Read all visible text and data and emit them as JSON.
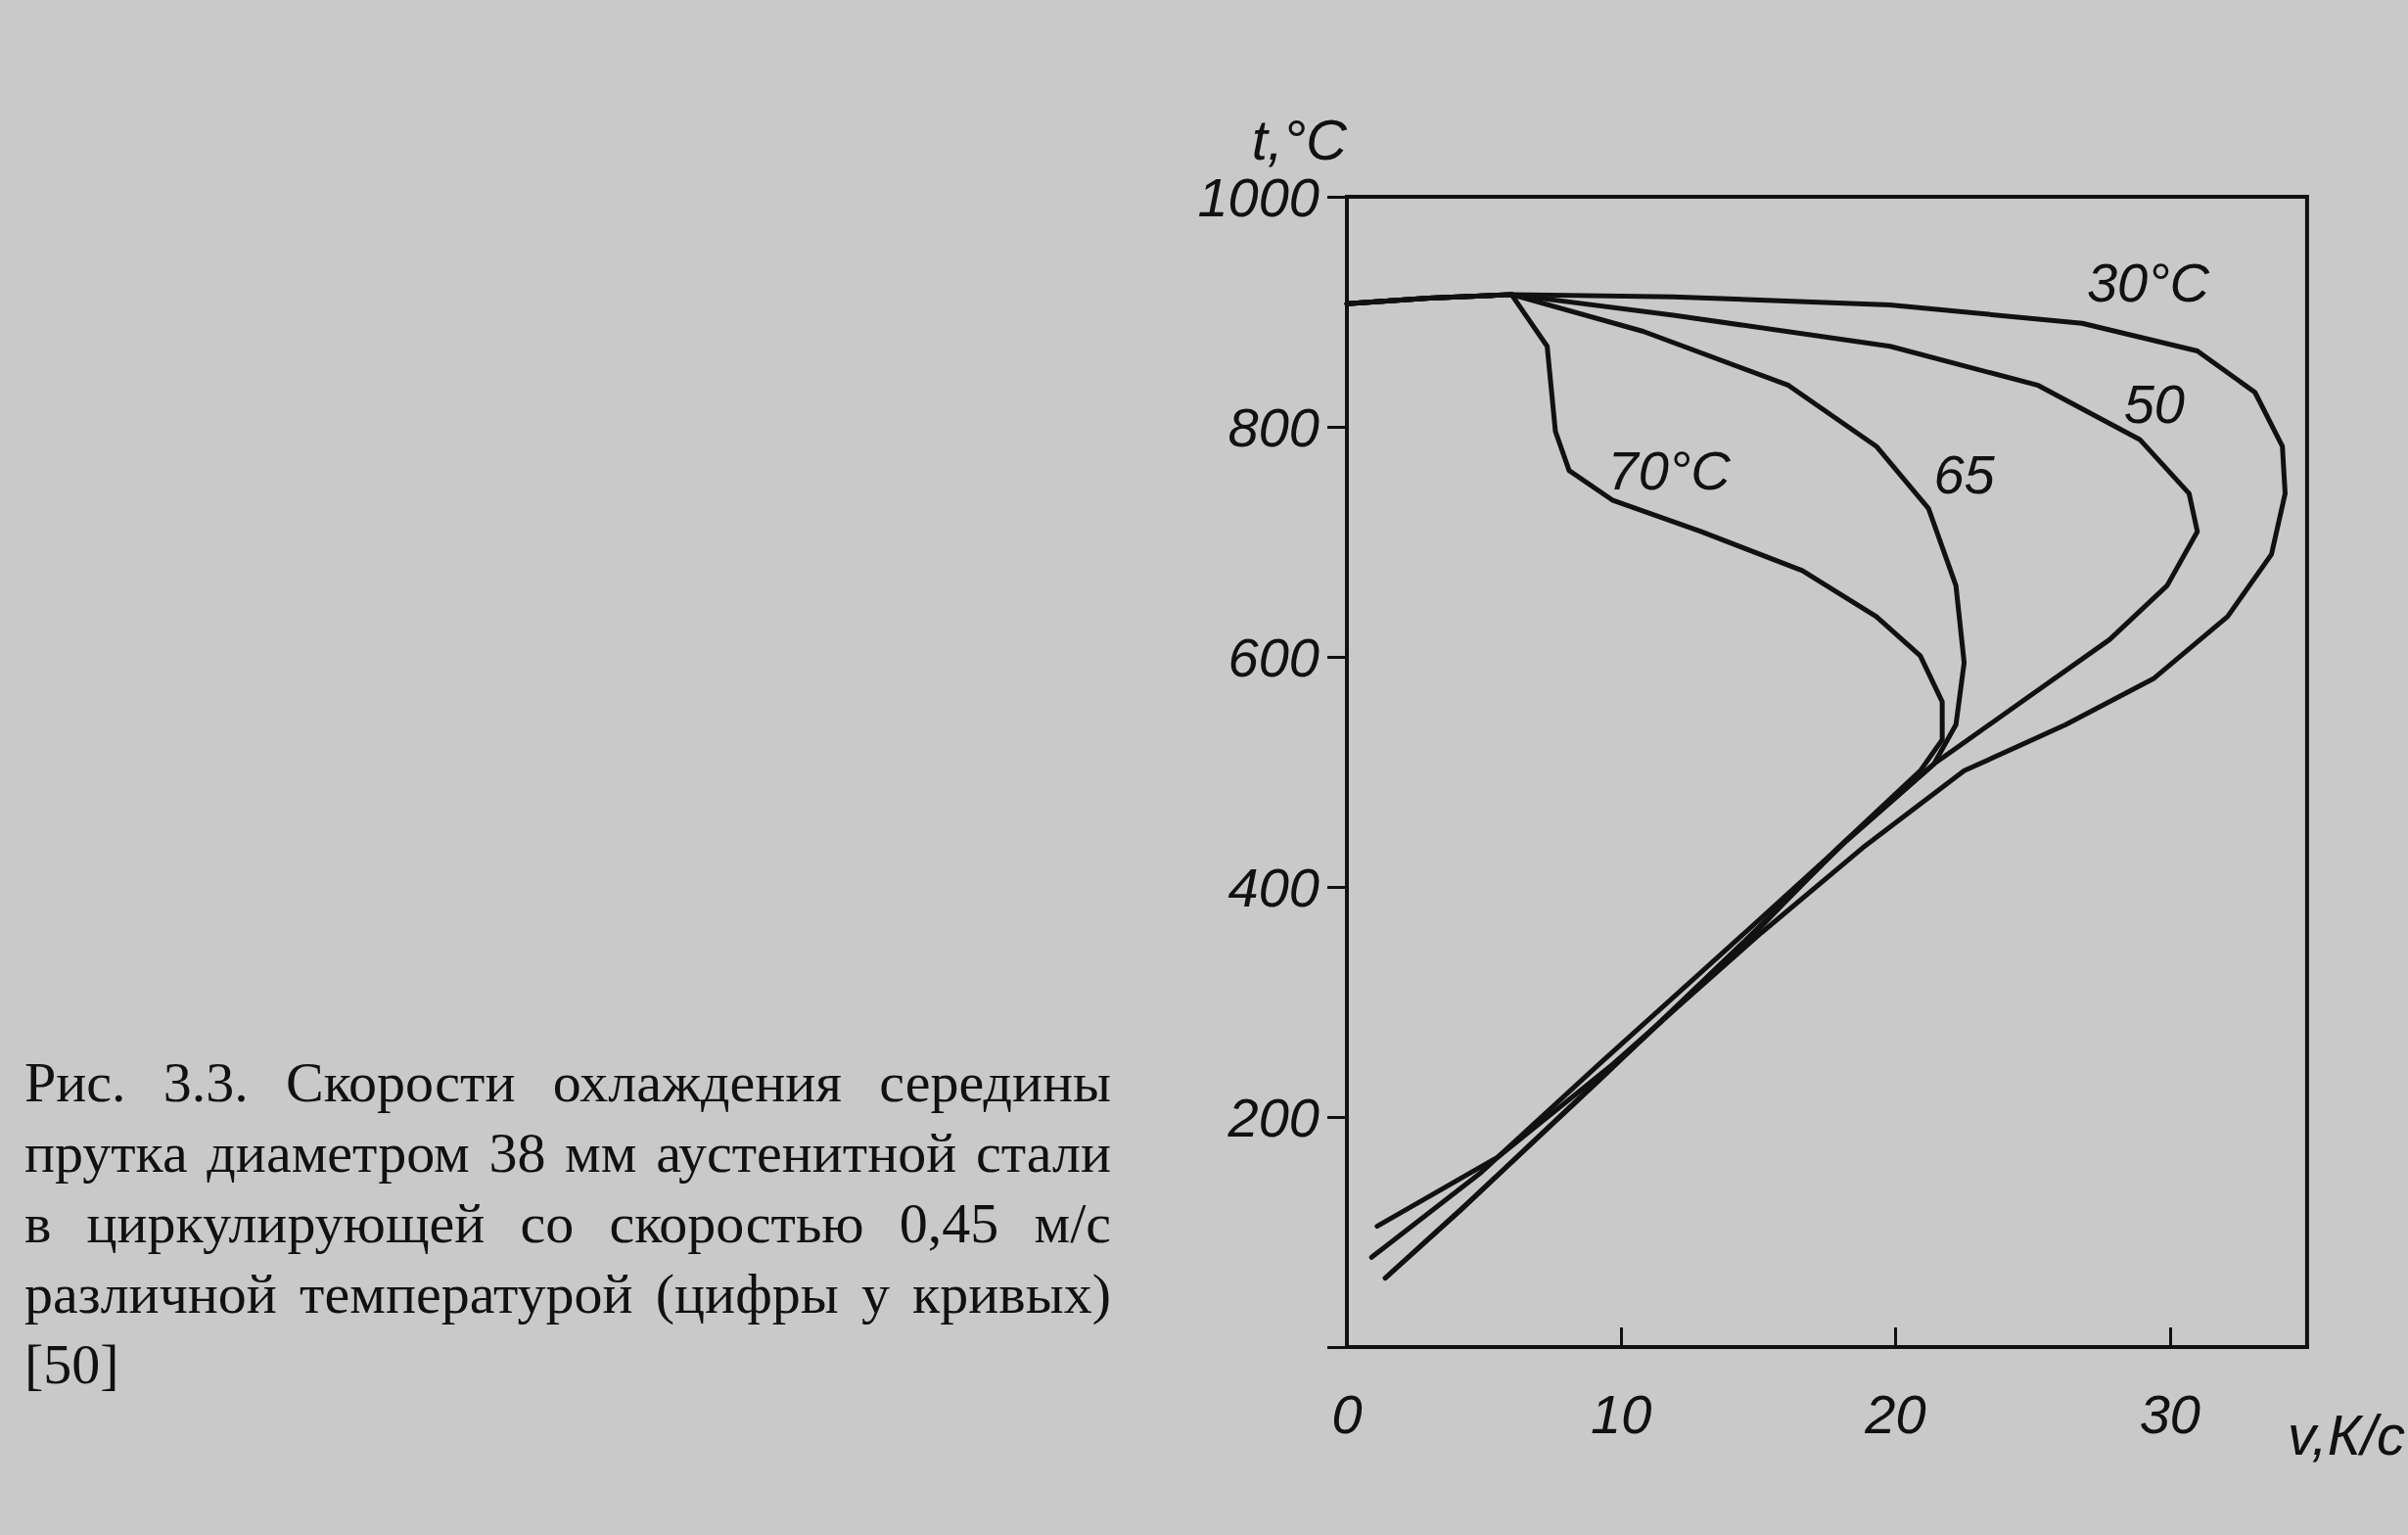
{
  "chart_data": {
    "type": "line",
    "xlabel": "v,К/с",
    "ylabel": "t,°C",
    "xlim": [
      0,
      35
    ],
    "xticks": [
      0,
      10,
      20,
      30
    ],
    "ylim": [
      0,
      1000
    ],
    "yticks": [
      {
        "value": 0,
        "label": null
      },
      200,
      400,
      600,
      800,
      1000
    ],
    "grid": false,
    "marker": "none",
    "line_style": "solid",
    "series": [
      {
        "name": "30°C",
        "color": "#111111",
        "x": [
          0,
          3,
          6,
          11.9,
          19.8,
          26.8,
          31,
          33.1,
          34.1,
          34.2,
          33.7,
          32.1,
          29.4,
          26.2,
          22.5,
          18.8,
          15.1,
          9.7,
          5.5,
          1.1
        ],
        "values": [
          907,
          912,
          915,
          913,
          906,
          890,
          866,
          830,
          783,
          742,
          689,
          635,
          581,
          541,
          501,
          434,
          360,
          246,
          165,
          105
        ]
      },
      {
        "name": "50",
        "color": "#111111",
        "x": [
          0,
          3,
          6,
          11.9,
          19.8,
          25.2,
          28.9,
          30.7,
          31,
          29.9,
          27.8,
          24.6,
          21.4,
          18.2,
          14.5,
          9.2,
          4.9,
          0.9
        ],
        "values": [
          907,
          912,
          915,
          897,
          870,
          836,
          789,
          742,
          709,
          662,
          615,
          561,
          507,
          440,
          360,
          246,
          152,
          78
        ]
      },
      {
        "name": "65",
        "color": "#111111",
        "x": [
          0,
          3,
          6,
          10.8,
          16.1,
          19.3,
          21.2,
          22.2,
          22.5,
          22.2,
          21.4,
          18.2,
          14.5,
          9.2,
          4.4,
          1.4
        ],
        "values": [
          907,
          912,
          915,
          883,
          836,
          783,
          729,
          662,
          595,
          541,
          507,
          440,
          353,
          232,
          125,
          60
        ]
      },
      {
        "name": "70°C",
        "color": "#111111",
        "x": [
          0,
          3,
          6,
          7.3,
          7.6,
          8.1,
          9.7,
          12.9,
          16.6,
          19.3,
          20.9,
          21.7,
          21.7,
          20.9,
          17.9,
          14.3,
          8.9,
          4.1,
          1.4
        ],
        "values": [
          907,
          912,
          915,
          870,
          796,
          762,
          736,
          709,
          675,
          635,
          601,
          561,
          528,
          501,
          434,
          346,
          226,
          118,
          60
        ]
      }
    ],
    "annotations": [
      "Рис. 3.3. Скорости охлаждения середины прутка диаметром 38 мм аустенитной стали в циркулирующей со скоростью 0,45 м/с различной температурой (цифры у кривых) [50]"
    ]
  }
}
